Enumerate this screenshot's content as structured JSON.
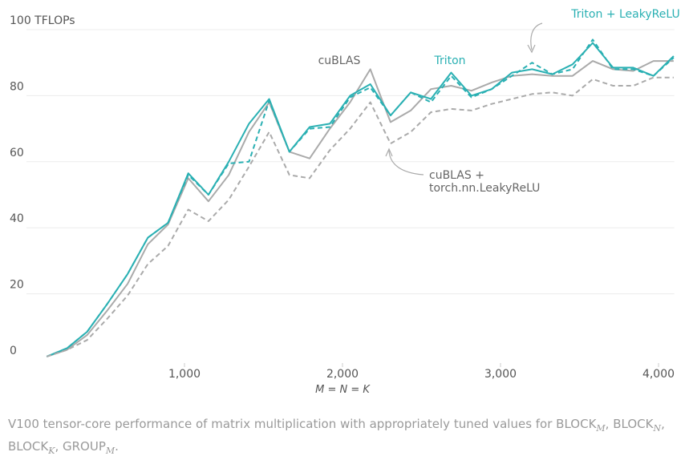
{
  "chart_data": {
    "type": "line",
    "x_label": "M = N = K",
    "x": [
      128,
      256,
      384,
      512,
      640,
      768,
      896,
      1024,
      1152,
      1280,
      1408,
      1536,
      1664,
      1792,
      1920,
      2048,
      2176,
      2304,
      2432,
      2560,
      2688,
      2816,
      2944,
      3072,
      3200,
      3328,
      3456,
      3584,
      3712,
      3840,
      3968,
      4096
    ],
    "xlim": [
      0,
      4100
    ],
    "xticks": [
      {
        "value": 1000,
        "label": "1,000"
      },
      {
        "value": 2000,
        "label": "2,000"
      },
      {
        "value": 3000,
        "label": "3,000"
      },
      {
        "value": 4000,
        "label": "4,000"
      }
    ],
    "ylim": [
      0,
      100
    ],
    "yticks": [
      0,
      20,
      40,
      60,
      80,
      {
        "value": 100,
        "label": "100 TFLOPs"
      }
    ],
    "grid": true,
    "series": [
      {
        "name": "cuBLAS",
        "color": "#aaaaaa",
        "dash": false,
        "values": [
          1,
          3,
          7.5,
          15,
          23,
          35,
          41,
          55,
          48,
          56,
          69,
          78,
          63,
          61,
          70,
          78,
          88,
          72,
          75.5,
          82,
          83,
          81.5,
          84,
          86,
          86.5,
          86,
          86,
          90.5,
          88,
          87.5,
          90.5,
          90.5
        ]
      },
      {
        "name": "Triton",
        "color": "#2ab0b3",
        "dash": false,
        "values": [
          1,
          3.5,
          8.5,
          17,
          26,
          37,
          41.5,
          56.5,
          50,
          60,
          71.5,
          79,
          63,
          70.5,
          71.5,
          80,
          83.5,
          74,
          81,
          79,
          87,
          80,
          82,
          87,
          88,
          86.5,
          89.5,
          96,
          88.5,
          88.5,
          86,
          92
        ]
      },
      {
        "name": "Triton + LeakyReLU",
        "color": "#2ab0b3",
        "dash": true,
        "values": [
          1,
          3.5,
          8.5,
          17,
          26,
          37,
          41.5,
          56,
          50,
          59.5,
          60,
          78.5,
          63,
          70,
          70.5,
          79.5,
          82.5,
          74,
          81,
          78,
          86,
          79.5,
          82,
          86,
          90,
          86.5,
          88,
          97,
          88,
          88,
          86,
          91.5
        ]
      },
      {
        "name": [
          "cuBLAS +",
          "torch.nn.LeakyReLU"
        ],
        "color": "#aaaaaa",
        "dash": true,
        "values": [
          1,
          3,
          6,
          12.5,
          19.5,
          29,
          34.5,
          45.5,
          42,
          48.5,
          58.5,
          69,
          56,
          55,
          63.5,
          70,
          78,
          65.5,
          69,
          75,
          76,
          75.5,
          77.5,
          79,
          80.5,
          81,
          80,
          85,
          83,
          83,
          85.5,
          85.5
        ]
      }
    ]
  },
  "caption": [
    "V100 tensor-core performance of matrix multiplication with appropriately tuned values for BLOCK",
    "M",
    ", BLOCK",
    "N",
    ", BLOCK",
    "K",
    ", GROUP",
    "M",
    "."
  ]
}
